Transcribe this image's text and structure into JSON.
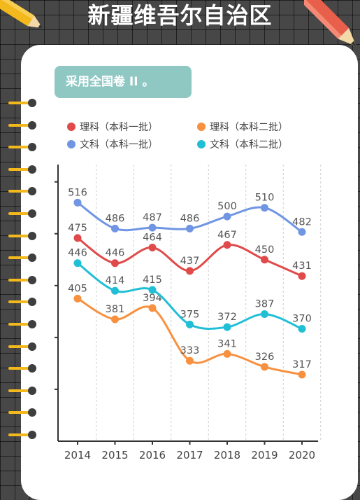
{
  "header": {
    "title": "新疆维吾尔自治区"
  },
  "badge": {
    "text": "采用全国卷 II 。"
  },
  "colors": {
    "background": "#474747",
    "card": "#ffffff",
    "badge": "#8fc8c3",
    "ring": "#f2b81c",
    "pencil_body": "#f2b81c",
    "pencil_red": "#e8604c"
  },
  "chart_data": {
    "type": "line",
    "x": [
      "2014",
      "2015",
      "2016",
      "2017",
      "2018",
      "2019",
      "2020"
    ],
    "ylim": [
      240,
      560
    ],
    "legend_position": "top",
    "grid": "vertical dashed",
    "series": [
      {
        "name": "理科（本科一批）",
        "color": "#e04a4a",
        "values": [
          475,
          446,
          464,
          437,
          467,
          450,
          431
        ],
        "labels": [
          "475",
          "446",
          "464",
          "437",
          "467",
          "450",
          "431"
        ]
      },
      {
        "name": "理科（本科二批）",
        "color": "#f7913f",
        "values": [
          405,
          381,
          394,
          333,
          341,
          326,
          317
        ],
        "labels": [
          "405",
          "381",
          "394",
          "333",
          "341",
          "326",
          "317"
        ]
      },
      {
        "name": "文科（本科一批）",
        "color": "#6f95e3",
        "values": [
          516,
          486,
          487,
          486,
          500,
          510,
          482
        ],
        "labels": [
          "516",
          "486",
          "487",
          "486",
          "500",
          "510",
          "482"
        ]
      },
      {
        "name": "文科（本科二批）",
        "color": "#21bfd6",
        "values": [
          446,
          414,
          415,
          375,
          372,
          387,
          370
        ],
        "labels": [
          "446",
          "414",
          "415",
          "375",
          "372",
          "387",
          "370"
        ]
      }
    ]
  }
}
